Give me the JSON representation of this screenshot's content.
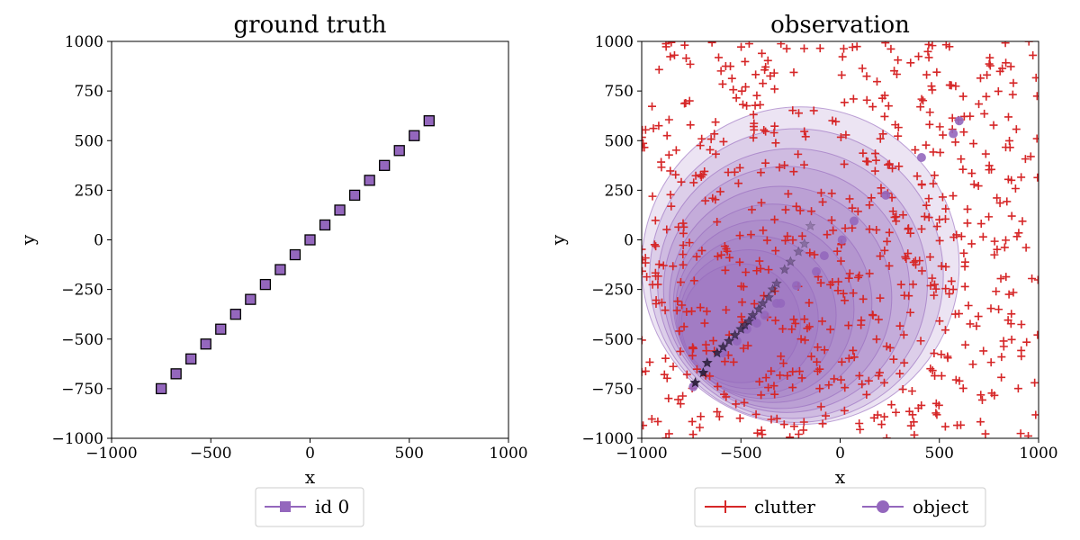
{
  "chart_data": [
    {
      "type": "scatter",
      "title": "ground truth",
      "xlabel": "x",
      "ylabel": "y",
      "xlim": [
        -1000,
        1000
      ],
      "ylim": [
        -1000,
        1000
      ],
      "xticks": [
        "−1000",
        "−500",
        "0",
        "500",
        "1000"
      ],
      "yticks": [
        "−1000",
        "−750",
        "−500",
        "−250",
        "0",
        "250",
        "500",
        "750",
        "1000"
      ],
      "grid": false,
      "legend_position": "below",
      "series": [
        {
          "name": "id 0",
          "marker": "square",
          "color": "#9467bd",
          "edge_color": "#000000",
          "x": [
            -750,
            -675,
            -600,
            -525,
            -450,
            -375,
            -300,
            -225,
            -150,
            -75,
            0,
            75,
            150,
            225,
            300,
            375,
            450,
            525,
            600
          ],
          "y": [
            -750,
            -675,
            -600,
            -525,
            -450,
            -375,
            -300,
            -225,
            -150,
            -75,
            0,
            75,
            150,
            225,
            300,
            375,
            450,
            525,
            600
          ]
        }
      ]
    },
    {
      "type": "scatter",
      "title": "observation",
      "xlabel": "x",
      "ylabel": "y",
      "xlim": [
        -1000,
        1000
      ],
      "ylim": [
        -1000,
        1000
      ],
      "xticks": [
        "−1000",
        "−500",
        "0",
        "500",
        "1000"
      ],
      "yticks": [
        "−1000",
        "−750",
        "−500",
        "−250",
        "0",
        "250",
        "500",
        "750",
        "1000"
      ],
      "grid": false,
      "legend_position": "below",
      "legend_columns": 2,
      "series": [
        {
          "name": "clutter",
          "marker": "plus",
          "color": "#d62728",
          "count": 650,
          "distribution": "uniform",
          "seed": 7
        },
        {
          "name": "object",
          "marker": "circle",
          "color": "#9467bd",
          "x": [
            -740,
            -590,
            -520,
            -470,
            -440,
            -420,
            -380,
            -320,
            -300,
            -220,
            -120,
            -80,
            10,
            70,
            230,
            410,
            570,
            600
          ],
          "y": [
            -740,
            -570,
            -510,
            -450,
            -400,
            -420,
            -380,
            -320,
            -320,
            -230,
            -160,
            -80,
            0,
            95,
            225,
            415,
            535,
            600
          ]
        }
      ],
      "estimates": {
        "marker": "star",
        "color": "#2b1f3a",
        "x": [
          -730,
          -690,
          -670,
          -620,
          -590,
          -560,
          -530,
          -500,
          -480,
          -460,
          -440,
          -410,
          -390,
          -360,
          -340,
          -320,
          -280,
          -250,
          -210,
          -180,
          -150
        ],
        "y": [
          -720,
          -670,
          -620,
          -570,
          -540,
          -510,
          -480,
          -450,
          -430,
          -410,
          -380,
          -350,
          -320,
          -290,
          -250,
          -220,
          -150,
          -110,
          -60,
          -20,
          70
        ]
      },
      "uncertainty_regions": {
        "color": "#9467bd",
        "fill_alpha": 0.18,
        "cx": [
          -500,
          -460,
          -420,
          -380,
          -340,
          -300,
          -270,
          -240,
          -220,
          -200
        ],
        "cy": [
          -420,
          -400,
          -380,
          -350,
          -320,
          -290,
          -250,
          -220,
          -180,
          -130
        ],
        "r": [
          300,
          350,
          400,
          450,
          500,
          560,
          620,
          680,
          740,
          800
        ]
      }
    }
  ]
}
